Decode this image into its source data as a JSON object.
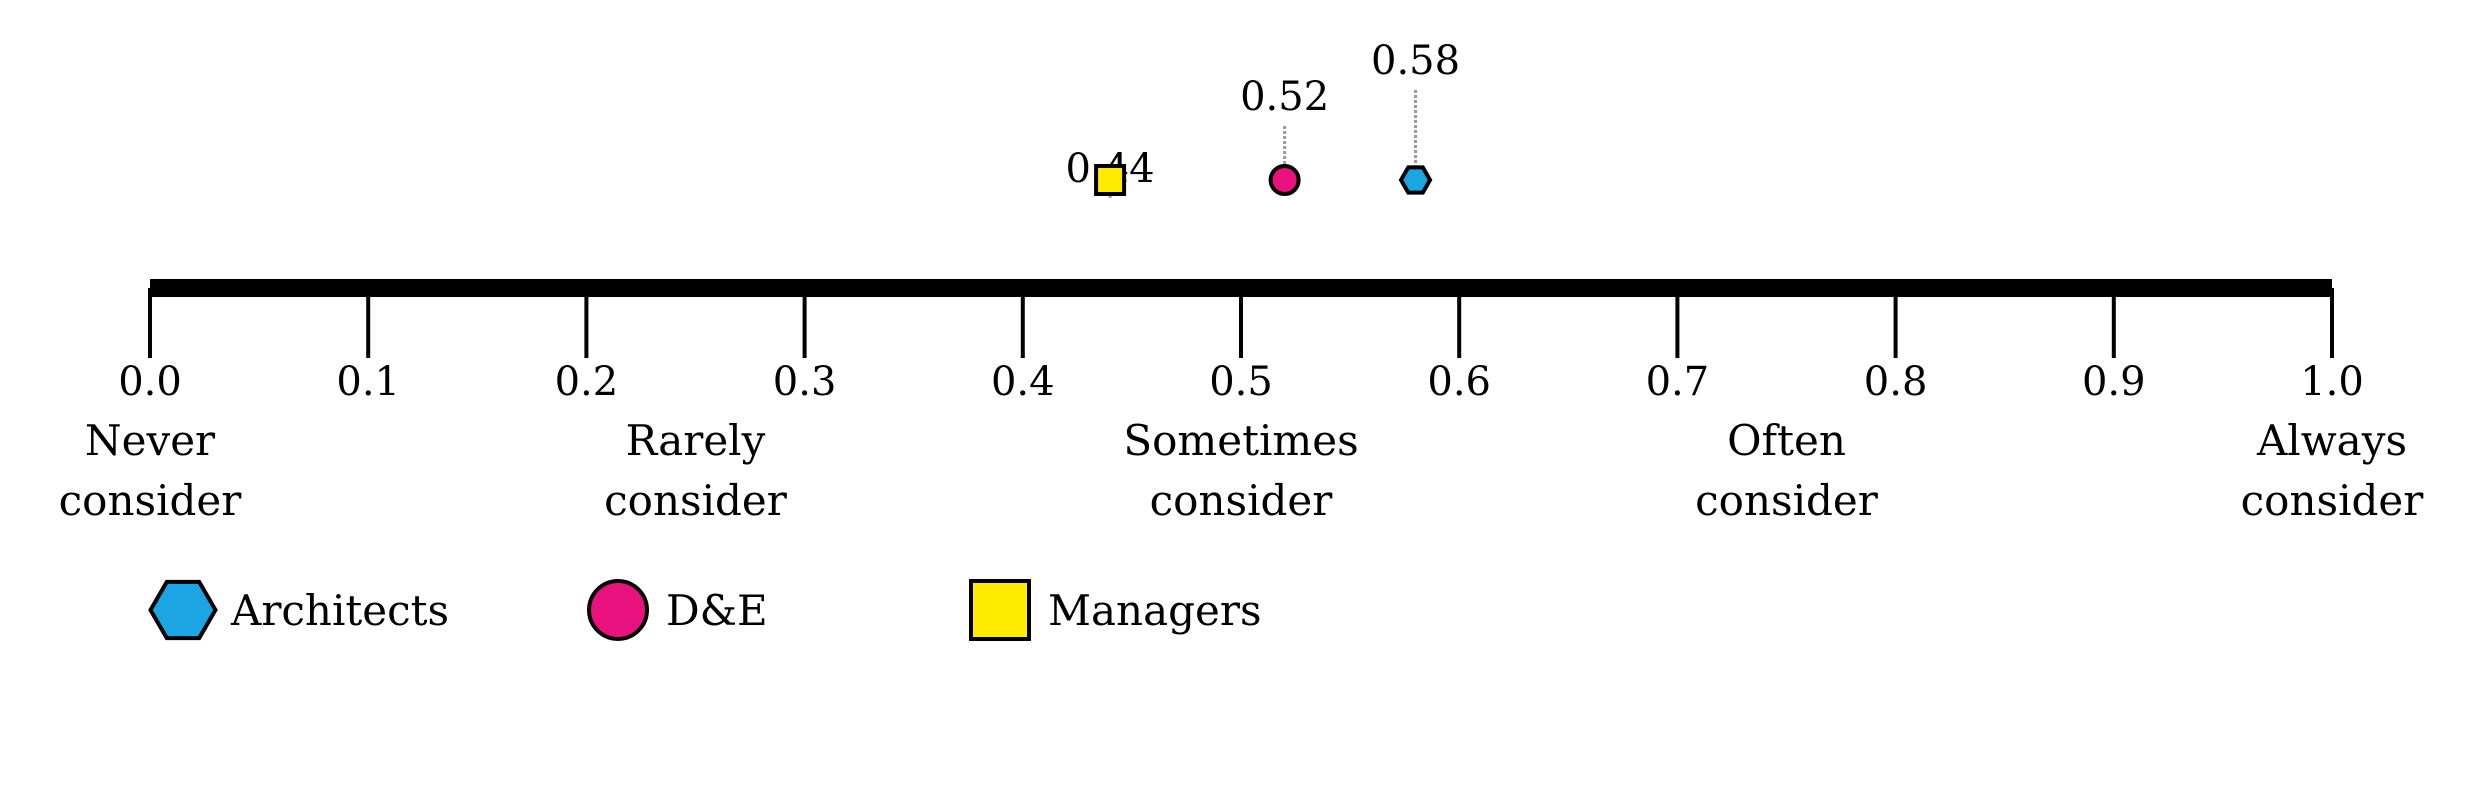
{
  "chart_data": {
    "type": "scatter",
    "title": "",
    "xlabel": "",
    "ylabel": "",
    "xlim": [
      0.0,
      1.0
    ],
    "ticks": [
      "0.0",
      "0.1",
      "0.2",
      "0.3",
      "0.4",
      "0.5",
      "0.6",
      "0.7",
      "0.8",
      "0.9",
      "1.0"
    ],
    "scale_labels": [
      {
        "value": 0.0,
        "lines": [
          "Never",
          "consider"
        ]
      },
      {
        "value": 0.25,
        "lines": [
          "Rarely",
          "consider"
        ]
      },
      {
        "value": 0.5,
        "lines": [
          "Sometimes",
          "consider"
        ]
      },
      {
        "value": 0.75,
        "lines": [
          "Often",
          "consider"
        ]
      },
      {
        "value": 1.0,
        "lines": [
          "Always",
          "consider"
        ]
      }
    ],
    "series": [
      {
        "name": "Architects",
        "value": 0.58,
        "label": "0.58",
        "marker": "hexagon",
        "color": "#1ba6e3"
      },
      {
        "name": "D&E",
        "value": 0.52,
        "label": "0.52",
        "marker": "circle",
        "color": "#e9117d"
      },
      {
        "name": "Managers",
        "value": 0.44,
        "label": "0.44",
        "marker": "square",
        "color": "#ffeb00"
      }
    ],
    "legend": {
      "placement": "bottom-left",
      "items": [
        "Architects",
        "D&E",
        "Managers"
      ]
    },
    "grid": false
  }
}
